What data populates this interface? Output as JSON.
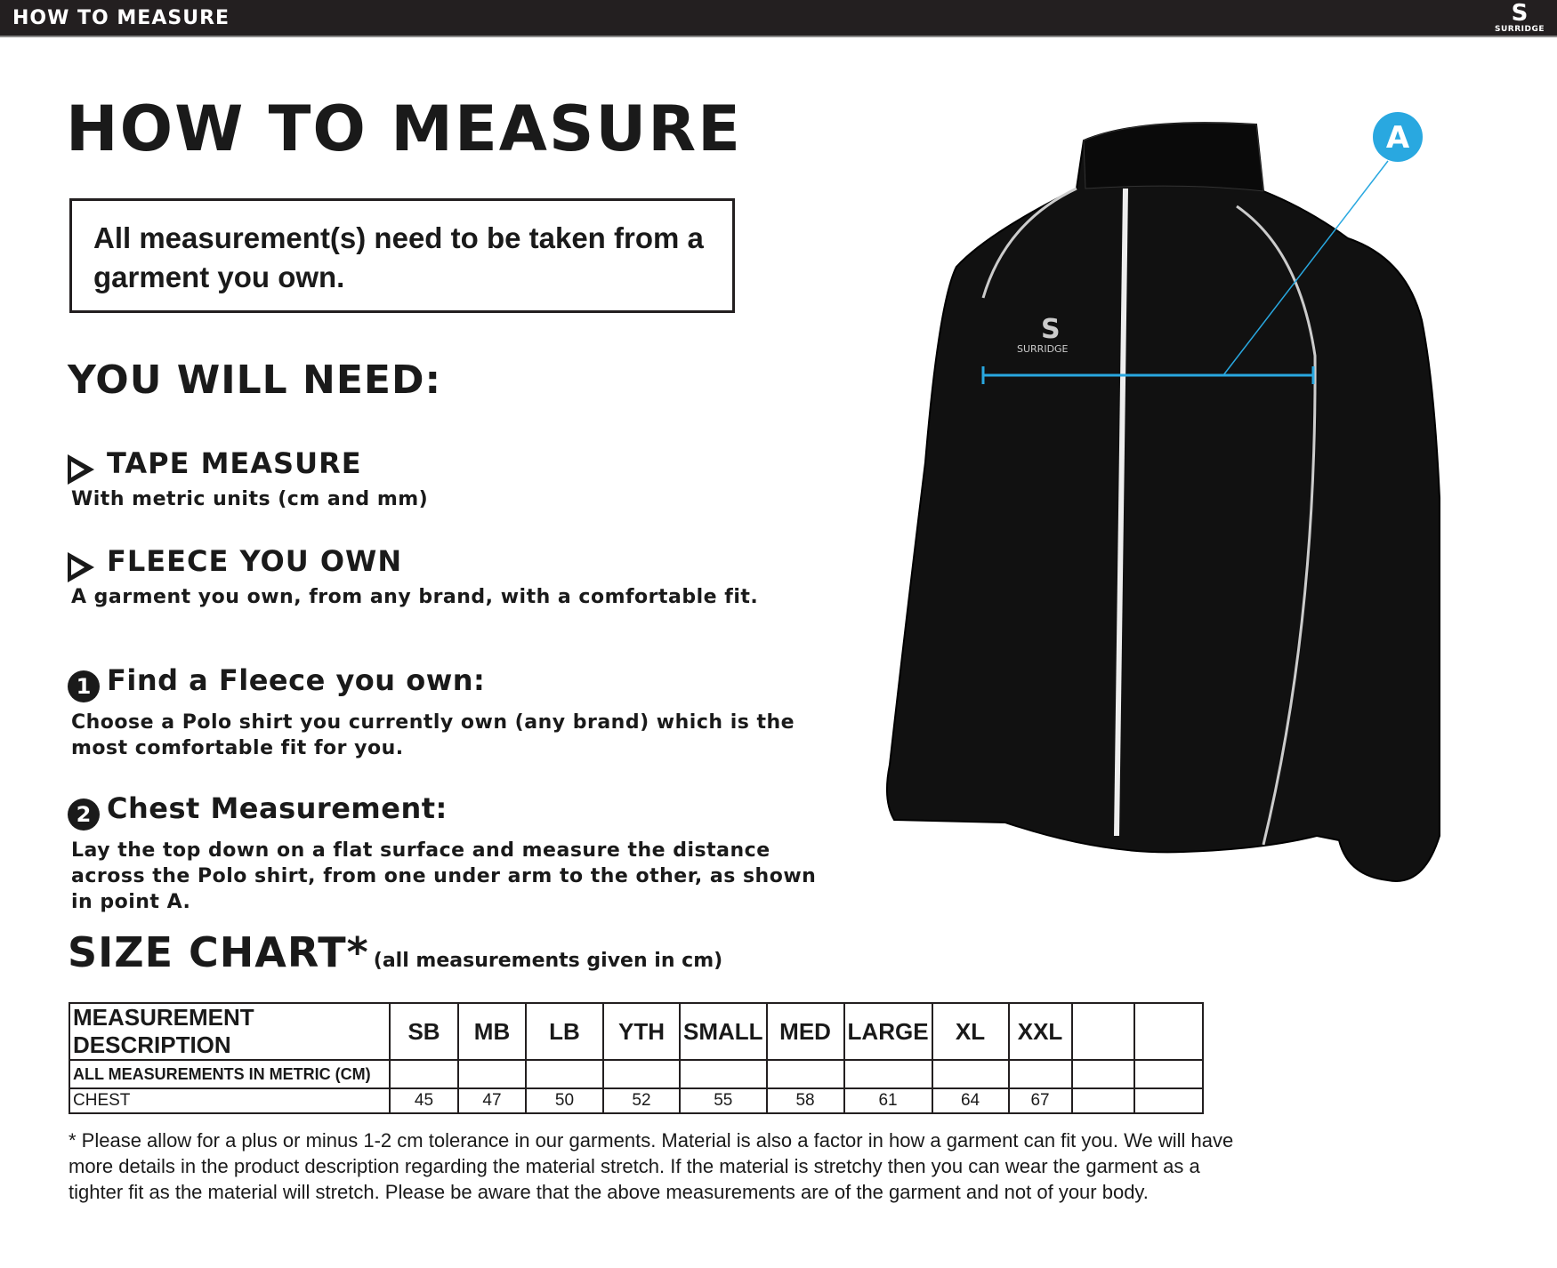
{
  "header": {
    "title": "HOW TO MEASURE",
    "logo_text": "SURRIDGE"
  },
  "main": {
    "title": "HOW TO MEASURE",
    "note": "All measurement(s) need to be taken from a garment you own.",
    "need_heading": "YOU WILL NEED:",
    "needs": [
      {
        "title": "TAPE MEASURE",
        "desc": "With metric units (cm and mm)"
      },
      {
        "title": "FLEECE YOU OWN",
        "desc": "A garment you own, from any brand, with a comfortable fit."
      }
    ],
    "steps": [
      {
        "num": "1",
        "title": "Find a Fleece you own:",
        "desc": "Choose a Polo shirt you currently own (any brand) which is the most comfortable fit for you."
      },
      {
        "num": "2",
        "title": "Chest Measurement:",
        "desc": "Lay the top down on a flat surface and measure the distance across the Polo shirt, from one under arm to the other, as shown in point A."
      }
    ],
    "size_chart_title": "SIZE CHART*",
    "size_chart_note": "(all measurements given in cm)",
    "table": {
      "headers": [
        "MEASUREMENT DESCRIPTION",
        "SB",
        "MB",
        "LB",
        "YTH",
        "SMALL",
        "MED",
        "LARGE",
        "XL",
        "XXL",
        "",
        ""
      ],
      "subheader": "ALL MEASUREMENTS IN METRIC (CM)",
      "rows": [
        {
          "label": "CHEST",
          "values": [
            "45",
            "47",
            "50",
            "52",
            "55",
            "58",
            "61",
            "64",
            "67",
            "",
            ""
          ]
        }
      ]
    },
    "footnote": "* Please allow for a plus or minus 1-2 cm tolerance in our garments. Material is also a factor in how a garment can fit you. We will have more details in the product description regarding the material stretch.  If the material is stretchy then you can wear the garment as a tighter fit as the material will stretch.  Please be aware that the above measurements are of the garment and not of your body."
  },
  "diagram": {
    "point_label": "A",
    "accent_color": "#29a8e0",
    "garment_logo": "SURRIDGE"
  }
}
